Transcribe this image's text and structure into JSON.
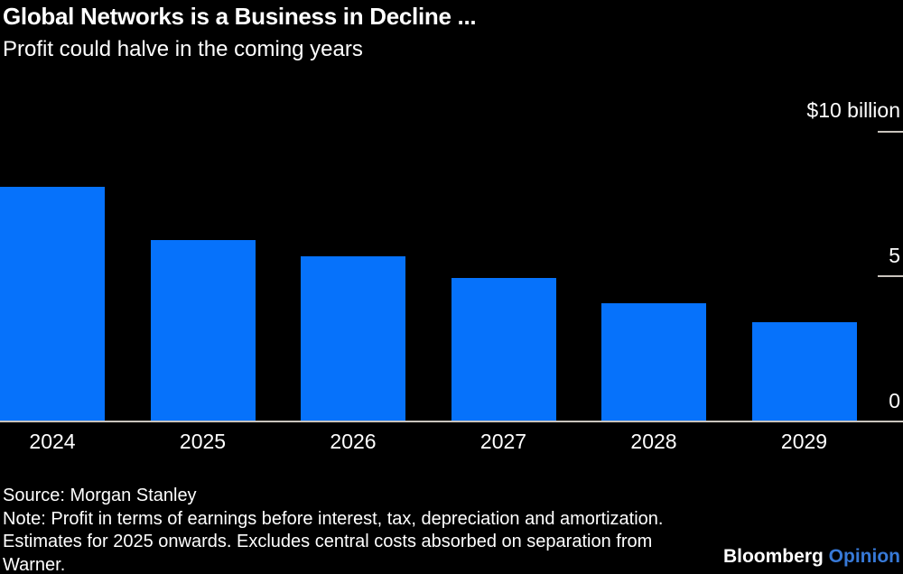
{
  "header": {
    "title": "Global Networks is a Business in Decline ...",
    "subtitle": "Profit could halve in the coming years"
  },
  "chart_data": {
    "type": "bar",
    "categories": [
      "2024",
      "2025",
      "2026",
      "2027",
      "2028",
      "2029"
    ],
    "values": [
      8.1,
      6.25,
      5.7,
      4.95,
      4.05,
      3.4
    ],
    "title": "Global Networks is a Business in Decline ...",
    "subtitle": "Profit could halve in the coming years",
    "xlabel": "",
    "ylabel": "$ billion",
    "ylim": [
      0,
      10
    ],
    "yticks": [
      {
        "value": 10,
        "label": "$10 billion"
      },
      {
        "value": 5,
        "label": "5"
      },
      {
        "value": 0,
        "label": "0"
      }
    ],
    "tick_label_position": "right",
    "grid": false,
    "legend": "none",
    "bar_color": "#0672FB",
    "background_color": "#000000",
    "axis_color": "#c9c4bd"
  },
  "footer": {
    "source": "Source: Morgan Stanley",
    "note": "Note: Profit in terms of earnings before interest, tax, depreciation and amortization. Estimates for 2025 onwards. Excludes central costs absorbed on separation from Warner."
  },
  "branding": {
    "name": "Bloomberg",
    "product": "Opinion",
    "product_color": "#3779D7"
  }
}
